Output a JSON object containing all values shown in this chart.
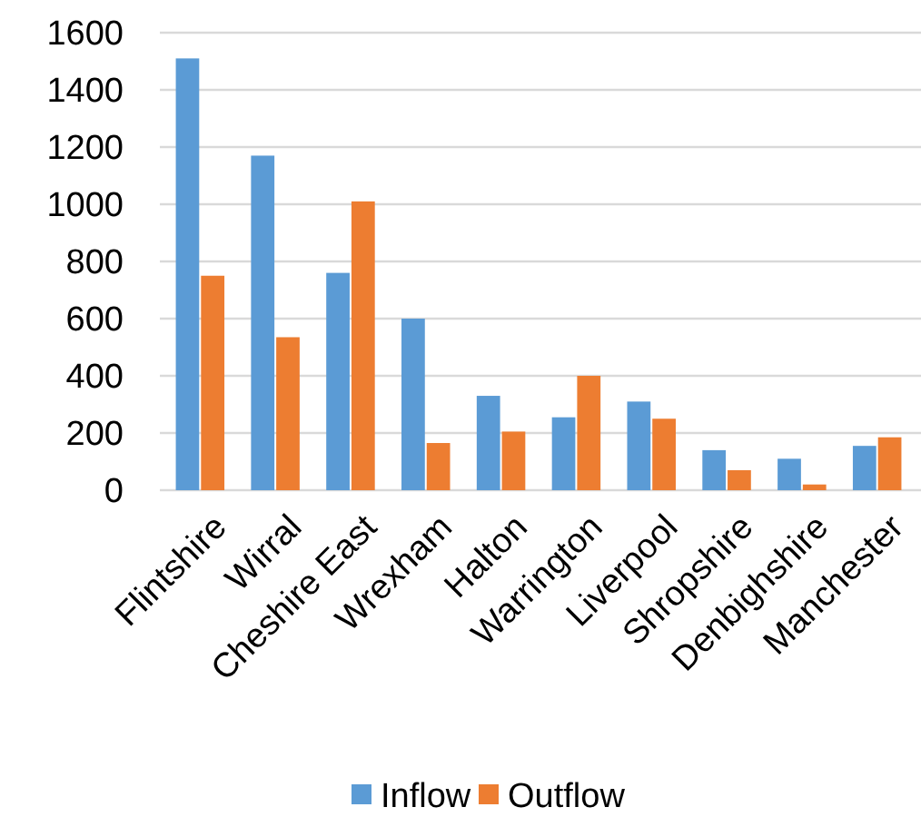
{
  "chart_data": {
    "type": "bar",
    "categories": [
      "Flintshire",
      "Wirral",
      "Cheshire East",
      "Wrexham",
      "Halton",
      "Warrington",
      "Liverpool",
      "Shropshire",
      "Denbighshire",
      "Manchester"
    ],
    "series": [
      {
        "name": "Inflow",
        "color": "#5b9bd5",
        "values": [
          1510,
          1170,
          760,
          600,
          330,
          255,
          310,
          140,
          110,
          155
        ]
      },
      {
        "name": "Outflow",
        "color": "#ed7d31",
        "values": [
          750,
          535,
          1010,
          165,
          205,
          400,
          250,
          70,
          20,
          185
        ]
      }
    ],
    "ylim": [
      0,
      1600
    ],
    "yticks": [
      0,
      200,
      400,
      600,
      800,
      1000,
      1200,
      1400,
      1600
    ],
    "grid": "y",
    "legend": "bottom"
  }
}
